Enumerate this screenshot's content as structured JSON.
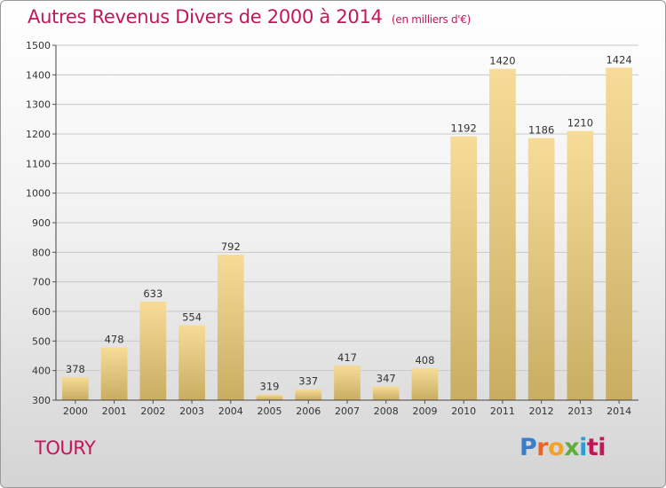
{
  "title": "Autres Revenus Divers de 2000 à 2014",
  "subtitle": "(en milliers d'€)",
  "place": "TOURY",
  "logo": {
    "letters": [
      "P",
      "r",
      "o",
      "x",
      "i",
      "ti"
    ]
  },
  "colors": {
    "accent": "#c2185b",
    "bar_top": "#f6dc98",
    "bar_bottom": "#c8ad62"
  },
  "chart_data": {
    "type": "bar",
    "categories": [
      "2000",
      "2001",
      "2002",
      "2003",
      "2004",
      "2005",
      "2006",
      "2007",
      "2008",
      "2009",
      "2010",
      "2011",
      "2012",
      "2013",
      "2014"
    ],
    "values": [
      378,
      478,
      633,
      554,
      792,
      319,
      337,
      417,
      347,
      408,
      1192,
      1420,
      1186,
      1210,
      1424
    ],
    "ylim": [
      300,
      1500
    ],
    "yticks": [
      300,
      400,
      500,
      600,
      700,
      800,
      900,
      1000,
      1100,
      1200,
      1300,
      1400,
      1500
    ],
    "grid": true
  }
}
